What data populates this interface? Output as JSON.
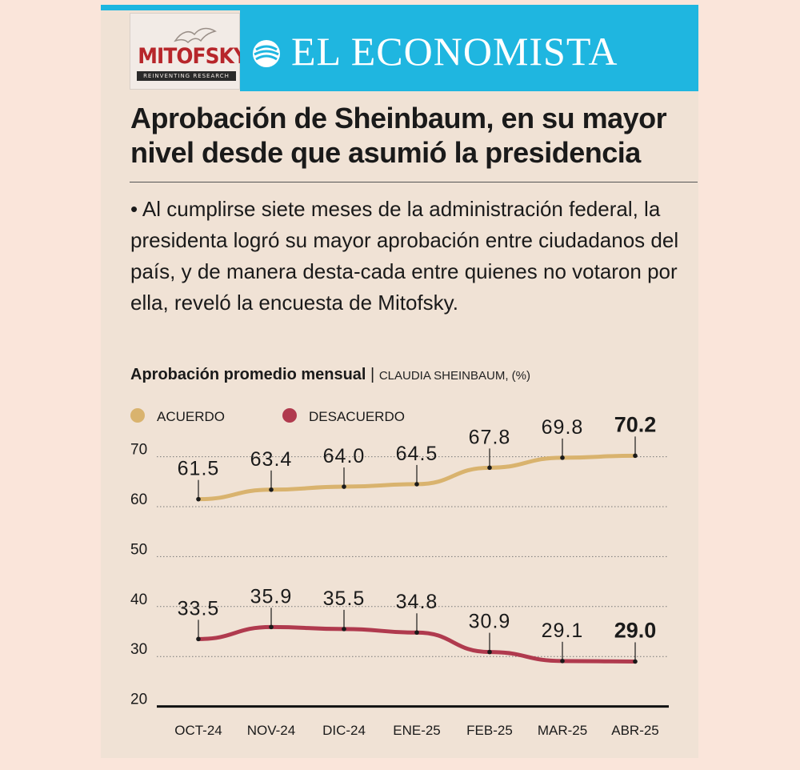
{
  "brand": {
    "logo_name": "MITOFSKY",
    "logo_tagline": "REINVENTING RESEARCH",
    "newspaper": "EL ECONOMISTA",
    "accent": "#1fb6e0",
    "logo_red": "#b7262b"
  },
  "article": {
    "headline": "Aprobación de Sheinbaum, en su mayor nivel desde que asumió la presidencia",
    "body": "• Al cumplirse siete meses de la administración federal, la presidenta logró su mayor aprobación entre ciudadanos del país, y de manera desta-cada entre quienes no votaron por ella, reveló la encuesta de Mitofsky."
  },
  "chart_header": {
    "title": "Aprobación promedio mensual",
    "separator": "|",
    "subtitle": "CLAUDIA SHEINBAUM, (%)"
  },
  "chart_data": {
    "type": "line",
    "title": "Aprobación promedio mensual",
    "subtitle": "CLAUDIA SHEINBAUM, (%)",
    "categories": [
      "OCT-24",
      "NOV-24",
      "DIC-24",
      "ENE-25",
      "FEB-25",
      "MAR-25",
      "ABR-25"
    ],
    "series": [
      {
        "name": "ACUERDO",
        "color": "#d9b36e",
        "values": [
          61.5,
          63.4,
          64.0,
          64.5,
          67.8,
          69.8,
          70.2
        ],
        "labels": [
          "61.5",
          "63.4",
          "64.0",
          "64.5",
          "67.8",
          "69.8",
          "70.2"
        ]
      },
      {
        "name": "DESACUERDO",
        "color": "#b03a4e",
        "values": [
          33.5,
          35.9,
          35.5,
          34.8,
          30.9,
          29.1,
          29.0
        ],
        "labels": [
          "33.5",
          "35.9",
          "35.5",
          "34.8",
          "30.9",
          "29.1",
          "29.0"
        ]
      }
    ],
    "y_ticks": [
      20,
      30,
      40,
      50,
      60,
      70
    ],
    "ylim": [
      20,
      70
    ],
    "grid": "dotted horizontal",
    "legend": "top-left",
    "highlight_last": true
  }
}
